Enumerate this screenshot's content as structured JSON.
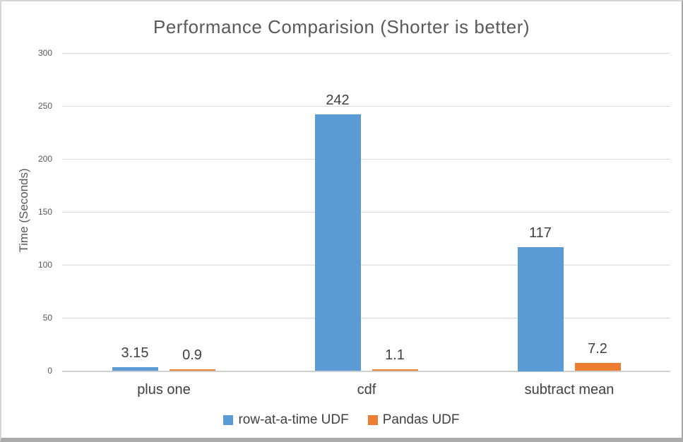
{
  "chart_data": {
    "type": "bar",
    "title": "Performance Comparision (Shorter is better)",
    "ylabel": "Time (Seconds)",
    "xlabel": "",
    "categories": [
      "plus one",
      "cdf",
      "subtract mean"
    ],
    "series": [
      {
        "name": "row-at-a-time UDF",
        "color": "#5B9BD5",
        "values": [
          3.15,
          242,
          117
        ],
        "labels": [
          "3.15",
          "242",
          "117"
        ]
      },
      {
        "name": "Pandas UDF",
        "color": "#ED7D31",
        "values": [
          0.9,
          1.1,
          7.2
        ],
        "labels": [
          "0.9",
          "1.1",
          "7.2"
        ]
      }
    ],
    "ylim": [
      0,
      300
    ],
    "yticks": [
      0,
      50,
      100,
      150,
      200,
      250,
      300
    ],
    "grid": true,
    "legend_position": "bottom",
    "colors": {
      "gridline": "#d9d9d9",
      "axis_text": "#595959",
      "label_text": "#404040"
    }
  }
}
